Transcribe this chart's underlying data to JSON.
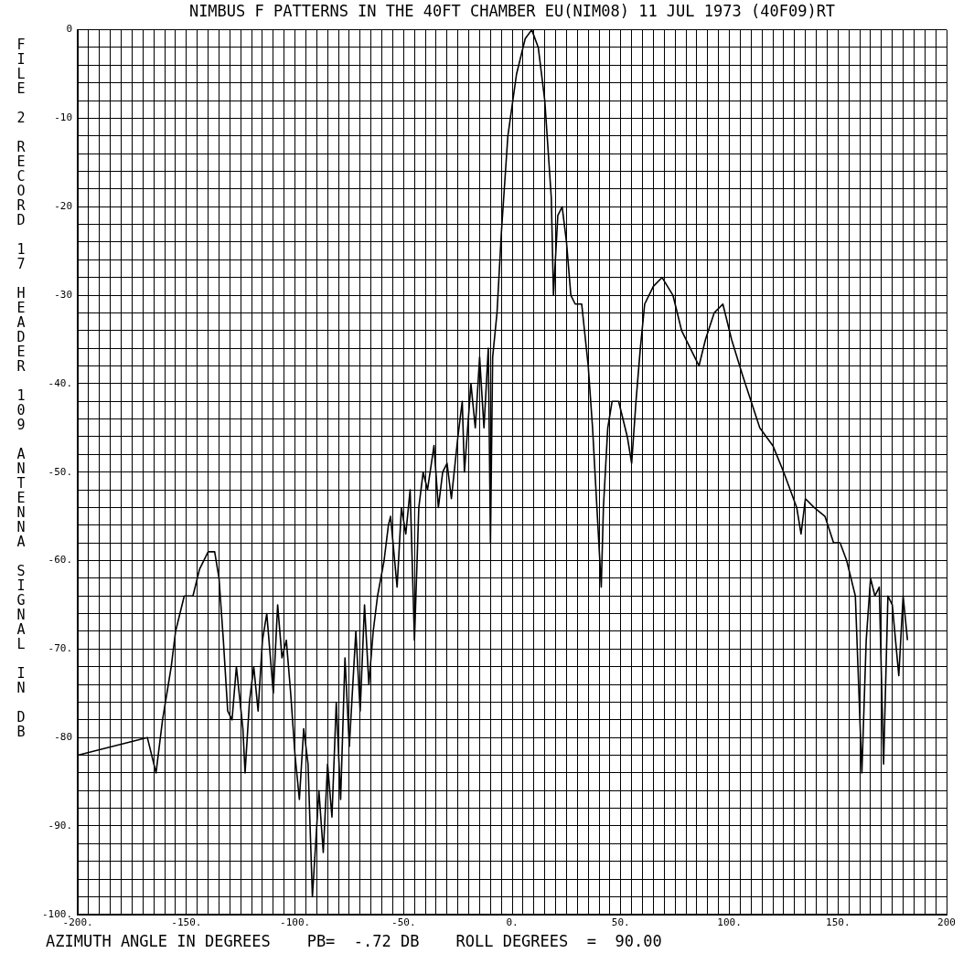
{
  "chart_data": {
    "type": "line",
    "title": "NIMBUS F PATTERNS IN THE 40FT CHAMBER EU(NIM08) 11 JUL 1973  (40F09)RT",
    "xlabel": "AZIMUTH ANGLE IN DEGREES",
    "ylabel": "FILE 2 RECORD 17 HEADER 109 ANTENNA SIGNAL IN DB",
    "annotations": [
      "PB=  -.72 DB",
      "ROLL DEGREES  =  90.00"
    ],
    "xlim": [
      -200,
      200
    ],
    "ylim": [
      -100,
      0
    ],
    "grid": true,
    "legend": false,
    "xticks": [
      {
        "value": -200,
        "label": "-200."
      },
      {
        "value": -195,
        "label": null
      },
      {
        "value": -190,
        "label": null
      },
      {
        "value": -185,
        "label": null
      },
      {
        "value": -180,
        "label": null
      },
      {
        "value": -175,
        "label": null
      },
      {
        "value": -170,
        "label": null
      },
      {
        "value": -165,
        "label": null
      },
      {
        "value": -160,
        "label": null
      },
      {
        "value": -155,
        "label": null
      },
      {
        "value": -150,
        "label": "-150."
      },
      {
        "value": -145,
        "label": null
      },
      {
        "value": -140,
        "label": null
      },
      {
        "value": -135,
        "label": null
      },
      {
        "value": -130,
        "label": null
      },
      {
        "value": -125,
        "label": null
      },
      {
        "value": -120,
        "label": null
      },
      {
        "value": -115,
        "label": null
      },
      {
        "value": -110,
        "label": null
      },
      {
        "value": -105,
        "label": null
      },
      {
        "value": -100,
        "label": "-100."
      },
      {
        "value": -95,
        "label": null
      },
      {
        "value": -90,
        "label": null
      },
      {
        "value": -85,
        "label": null
      },
      {
        "value": -80,
        "label": null
      },
      {
        "value": -75,
        "label": null
      },
      {
        "value": -70,
        "label": null
      },
      {
        "value": -65,
        "label": null
      },
      {
        "value": -60,
        "label": null
      },
      {
        "value": -55,
        "label": null
      },
      {
        "value": -50,
        "label": "-50."
      },
      {
        "value": -45,
        "label": null
      },
      {
        "value": -40,
        "label": null
      },
      {
        "value": -35,
        "label": null
      },
      {
        "value": -30,
        "label": null
      },
      {
        "value": -25,
        "label": null
      },
      {
        "value": -20,
        "label": null
      },
      {
        "value": -15,
        "label": null
      },
      {
        "value": -10,
        "label": null
      },
      {
        "value": -5,
        "label": null
      },
      {
        "value": 0,
        "label": "0."
      },
      {
        "value": 5,
        "label": null
      },
      {
        "value": 10,
        "label": null
      },
      {
        "value": 15,
        "label": null
      },
      {
        "value": 20,
        "label": null
      },
      {
        "value": 25,
        "label": null
      },
      {
        "value": 30,
        "label": null
      },
      {
        "value": 35,
        "label": null
      },
      {
        "value": 40,
        "label": null
      },
      {
        "value": 45,
        "label": null
      },
      {
        "value": 50,
        "label": "50."
      },
      {
        "value": 55,
        "label": null
      },
      {
        "value": 60,
        "label": null
      },
      {
        "value": 65,
        "label": null
      },
      {
        "value": 70,
        "label": null
      },
      {
        "value": 75,
        "label": null
      },
      {
        "value": 80,
        "label": null
      },
      {
        "value": 85,
        "label": null
      },
      {
        "value": 90,
        "label": null
      },
      {
        "value": 95,
        "label": null
      },
      {
        "value": 100,
        "label": "100."
      },
      {
        "value": 105,
        "label": null
      },
      {
        "value": 110,
        "label": null
      },
      {
        "value": 115,
        "label": null
      },
      {
        "value": 120,
        "label": null
      },
      {
        "value": 125,
        "label": null
      },
      {
        "value": 130,
        "label": null
      },
      {
        "value": 135,
        "label": null
      },
      {
        "value": 140,
        "label": null
      },
      {
        "value": 145,
        "label": null
      },
      {
        "value": 150,
        "label": "150."
      },
      {
        "value": 155,
        "label": null
      },
      {
        "value": 160,
        "label": null
      },
      {
        "value": 165,
        "label": null
      },
      {
        "value": 170,
        "label": null
      },
      {
        "value": 175,
        "label": null
      },
      {
        "value": 180,
        "label": null
      },
      {
        "value": 185,
        "label": null
      },
      {
        "value": 190,
        "label": null
      },
      {
        "value": 195,
        "label": null
      },
      {
        "value": 200,
        "label": "200"
      }
    ],
    "yticks": [
      {
        "value": 0,
        "label": "0"
      },
      {
        "value": -2,
        "label": null
      },
      {
        "value": -4,
        "label": null
      },
      {
        "value": -6,
        "label": null
      },
      {
        "value": -8,
        "label": null
      },
      {
        "value": -10,
        "label": "-10"
      },
      {
        "value": -12,
        "label": null
      },
      {
        "value": -14,
        "label": null
      },
      {
        "value": -16,
        "label": null
      },
      {
        "value": -18,
        "label": null
      },
      {
        "value": -20,
        "label": "-20"
      },
      {
        "value": -22,
        "label": null
      },
      {
        "value": -24,
        "label": null
      },
      {
        "value": -26,
        "label": null
      },
      {
        "value": -28,
        "label": null
      },
      {
        "value": -30,
        "label": "-30"
      },
      {
        "value": -32,
        "label": null
      },
      {
        "value": -34,
        "label": null
      },
      {
        "value": -36,
        "label": null
      },
      {
        "value": -38,
        "label": null
      },
      {
        "value": -40,
        "label": "-40."
      },
      {
        "value": -42,
        "label": null
      },
      {
        "value": -44,
        "label": null
      },
      {
        "value": -46,
        "label": null
      },
      {
        "value": -48,
        "label": null
      },
      {
        "value": -50,
        "label": "-50."
      },
      {
        "value": -52,
        "label": null
      },
      {
        "value": -54,
        "label": null
      },
      {
        "value": -56,
        "label": null
      },
      {
        "value": -58,
        "label": null
      },
      {
        "value": -60,
        "label": "-60."
      },
      {
        "value": -62,
        "label": null
      },
      {
        "value": -64,
        "label": null
      },
      {
        "value": -66,
        "label": null
      },
      {
        "value": -68,
        "label": null
      },
      {
        "value": -70,
        "label": "-70."
      },
      {
        "value": -72,
        "label": null
      },
      {
        "value": -74,
        "label": null
      },
      {
        "value": -76,
        "label": null
      },
      {
        "value": -78,
        "label": null
      },
      {
        "value": -80,
        "label": "-80"
      },
      {
        "value": -82,
        "label": null
      },
      {
        "value": -84,
        "label": null
      },
      {
        "value": -86,
        "label": null
      },
      {
        "value": -88,
        "label": null
      },
      {
        "value": -90,
        "label": "-90."
      },
      {
        "value": -92,
        "label": null
      },
      {
        "value": -94,
        "label": null
      },
      {
        "value": -96,
        "label": null
      },
      {
        "value": -98,
        "label": null
      },
      {
        "value": -100,
        "label": "-100."
      }
    ],
    "series": [
      {
        "color": "#000000",
        "x": [
          -200,
          -168,
          -164,
          -161,
          -159,
          -157,
          -155,
          -151,
          -147,
          -144,
          -140,
          -137,
          -135,
          -133,
          -131,
          -129,
          -127,
          -124,
          -123,
          -121,
          -119,
          -117,
          -115,
          -113,
          -110,
          -108,
          -106,
          -104,
          -102,
          -100,
          -98,
          -96,
          -94,
          -92,
          -89,
          -87,
          -85,
          -83,
          -81,
          -79,
          -77,
          -75,
          -72,
          -70,
          -68,
          -66,
          -64,
          -62,
          -59,
          -57,
          -56,
          -53,
          -51,
          -49,
          -47,
          -45,
          -43,
          -41,
          -39,
          -36,
          -34,
          -32,
          -30,
          -28,
          -25,
          -23,
          -22,
          -19,
          -17,
          -15,
          -13,
          -11,
          -10,
          -9,
          -7,
          -5,
          -2,
          2,
          6,
          9,
          12,
          15,
          18,
          19,
          21,
          23,
          25,
          27,
          29,
          32,
          35,
          37,
          39,
          41,
          42,
          44,
          46,
          49,
          53,
          55,
          57,
          59,
          61,
          65,
          69,
          74,
          78,
          82,
          86,
          89,
          93,
          97,
          101,
          106,
          110,
          114,
          120,
          125,
          128,
          131,
          133,
          135,
          139,
          144,
          148,
          151,
          154,
          158,
          161,
          163,
          165,
          167,
          169,
          171,
          173,
          175,
          178,
          180,
          182
        ],
        "values": [
          -82,
          -80,
          -84,
          -78,
          -75,
          -72,
          -68,
          -64,
          -64,
          -61,
          -59,
          -59,
          -62,
          -69,
          -77,
          -78,
          -72,
          -79,
          -84,
          -76,
          -72,
          -77,
          -69,
          -66,
          -75,
          -65,
          -71,
          -69,
          -75,
          -82,
          -87,
          -79,
          -83,
          -98,
          -86,
          -93,
          -83,
          -89,
          -76,
          -87,
          -71,
          -81,
          -68,
          -77,
          -65,
          -74,
          -68,
          -64,
          -60,
          -56,
          -55,
          -63,
          -54,
          -57,
          -52,
          -69,
          -54,
          -50,
          -52,
          -47,
          -54,
          -50,
          -49,
          -53,
          -46,
          -42,
          -50,
          -40,
          -45,
          -37,
          -45,
          -36,
          -58,
          -37,
          -32,
          -23,
          -12,
          -5,
          -1,
          0,
          -2,
          -8,
          -19,
          -30,
          -21,
          -20,
          -24,
          -30,
          -31,
          -31,
          -38,
          -45,
          -54,
          -63,
          -54,
          -45,
          -42,
          -42,
          -46,
          -49,
          -42,
          -36,
          -31,
          -29,
          -28,
          -30,
          -34,
          -36,
          -38,
          -35,
          -32,
          -31,
          -35,
          -39,
          -42,
          -45,
          -47,
          -50,
          -52,
          -54,
          -57,
          -53,
          -54,
          -55,
          -58,
          -58,
          -60,
          -64,
          -84,
          -69,
          -62,
          -64,
          -63,
          -83,
          -64,
          -65,
          -73,
          -64,
          -69
        ]
      }
    ]
  }
}
